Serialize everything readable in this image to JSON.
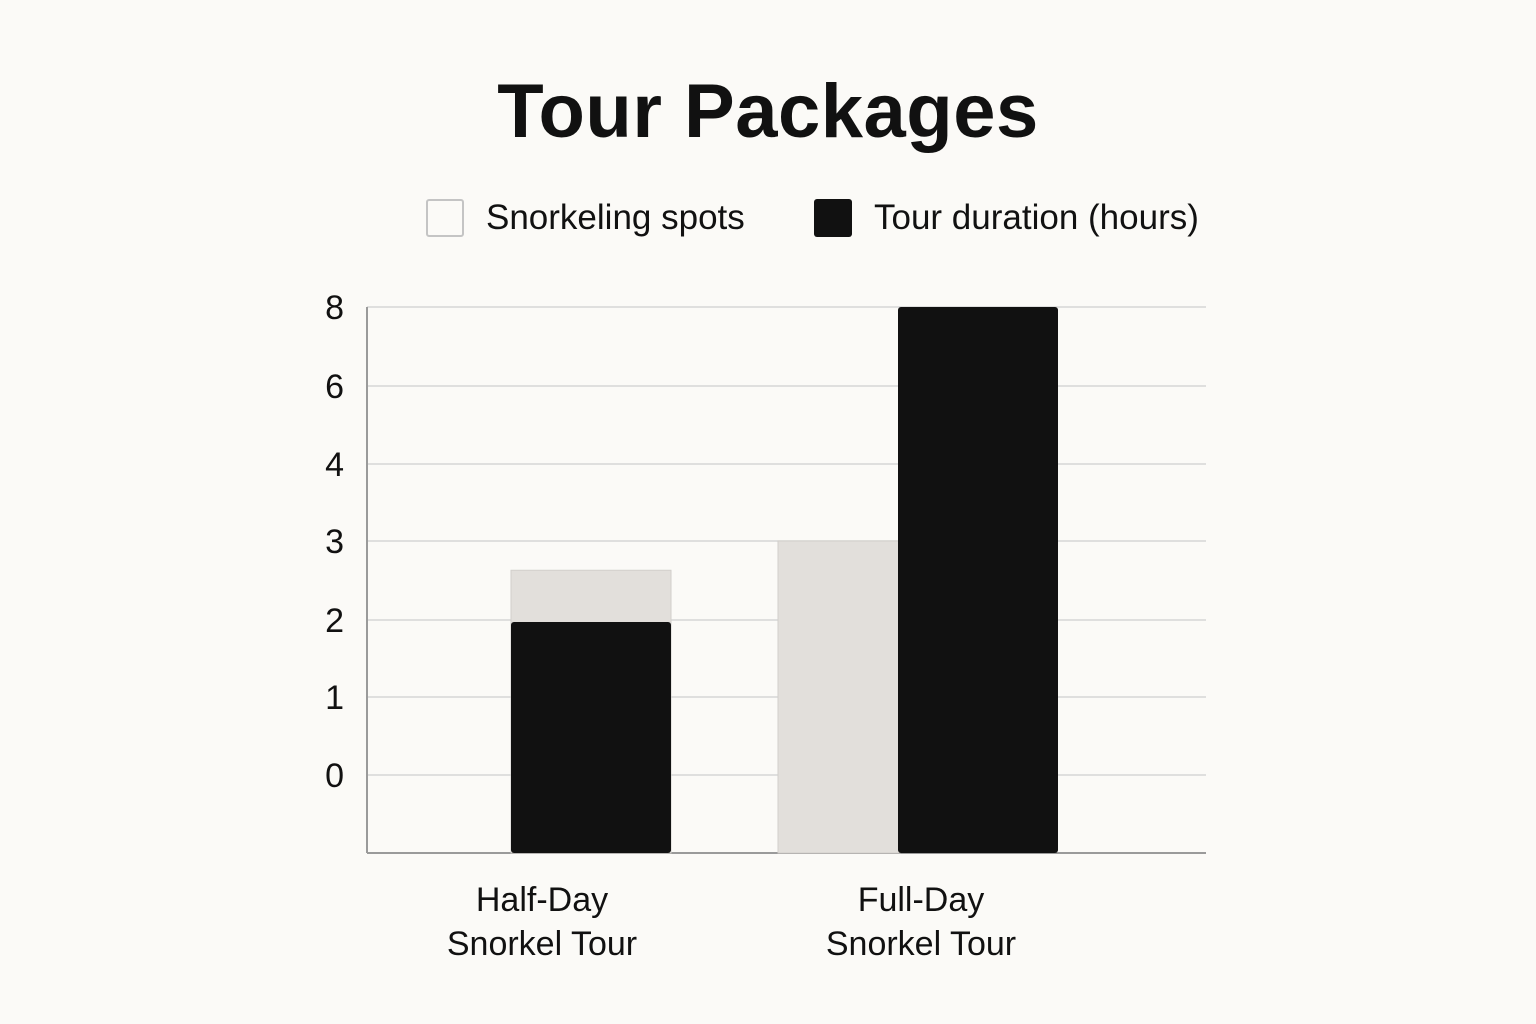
{
  "chart_data": {
    "type": "bar",
    "title": "Tour Packages",
    "xlabel": "",
    "ylabel": "",
    "categories": [
      "Half-Day Snorkel Tour",
      "Full-Day Snorkel Tour"
    ],
    "category_lines": [
      [
        "Half-Day",
        "Snorkel Tour"
      ],
      [
        "Full-Day",
        "Snorkel Tour"
      ]
    ],
    "series": [
      {
        "name": "Snorkeling spots",
        "values": [
          3,
          3
        ],
        "color": "#e2dfdb"
      },
      {
        "name": "Tour duration (hours)",
        "values": [
          2,
          8
        ],
        "color": "#111111"
      }
    ],
    "y_ticks": [
      "0",
      "1",
      "2",
      "3",
      "4",
      "6",
      "8"
    ],
    "legend_position": "top",
    "grid": true,
    "colors": {
      "background": "#fbfaf7",
      "grid": "#d6d6d6",
      "axis": "#9a9a9a"
    }
  }
}
